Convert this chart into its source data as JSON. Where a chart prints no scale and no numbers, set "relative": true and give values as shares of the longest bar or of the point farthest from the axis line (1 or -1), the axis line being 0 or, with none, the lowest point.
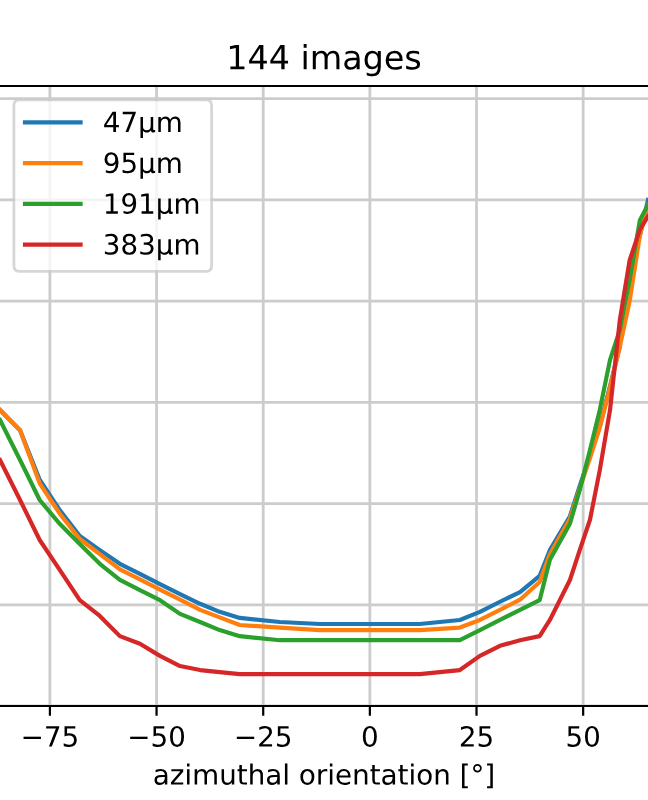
{
  "chart_data": {
    "type": "line",
    "title": "144 images",
    "xlabel": "azimuthal orientation [°]",
    "relative": true,
    "x": [
      -86.7,
      -82.0,
      -77.4,
      -72.7,
      -68.0,
      -63.3,
      -58.6,
      -53.9,
      -49.2,
      -44.5,
      -39.8,
      -35.2,
      -30.5,
      -21.1,
      -11.7,
      0,
      11.7,
      21.1,
      25.8,
      30.5,
      35.2,
      39.8,
      42.2,
      46.9,
      49.2,
      51.6,
      53.9,
      56.3,
      58.6,
      60.9,
      63.3,
      65.2
    ],
    "xlim": [
      -86.7,
      65.2
    ],
    "xticks": [
      -75,
      -50,
      -25,
      0,
      25,
      50
    ],
    "series": [
      {
        "name": "47μm",
        "color": "#1f77b4",
        "values": [
          0.585,
          0.545,
          0.447,
          0.387,
          0.336,
          0.308,
          0.281,
          0.261,
          0.241,
          0.221,
          0.202,
          0.186,
          0.174,
          0.166,
          0.162,
          0.162,
          0.162,
          0.17,
          0.186,
          0.206,
          0.225,
          0.257,
          0.308,
          0.375,
          0.435,
          0.494,
          0.553,
          0.632,
          0.711,
          null,
          0.929,
          1.0
        ]
      },
      {
        "name": "95μm",
        "color": "#ff7f0e",
        "values": [
          0.585,
          0.545,
          0.44,
          0.38,
          0.33,
          0.3,
          0.27,
          0.25,
          0.23,
          0.21,
          0.19,
          0.175,
          0.16,
          0.155,
          0.15,
          0.15,
          0.15,
          0.155,
          0.17,
          0.19,
          0.21,
          0.245,
          0.3,
          0.37,
          0.43,
          0.49,
          0.55,
          0.63,
          0.71,
          0.8,
          0.93,
          0.99
        ]
      },
      {
        "name": "191μm",
        "color": "#2ca02c",
        "values": [
          0.565,
          0.486,
          0.407,
          0.36,
          0.32,
          0.281,
          0.249,
          0.229,
          0.209,
          0.182,
          0.166,
          0.15,
          0.138,
          0.13,
          0.13,
          0.13,
          0.13,
          0.13,
          0.15,
          0.17,
          0.19,
          0.209,
          0.289,
          0.36,
          0.427,
          0.506,
          0.585,
          0.684,
          0.743,
          0.842,
          0.96,
          0.99
        ]
      },
      {
        "name": "383μm",
        "color": "#d62728",
        "values": [
          0.486,
          0.407,
          0.328,
          0.269,
          0.209,
          0.178,
          0.138,
          0.123,
          0.099,
          0.079,
          0.071,
          0.067,
          0.063,
          0.063,
          0.063,
          0.063,
          0.063,
          0.071,
          0.099,
          0.119,
          0.13,
          0.138,
          0.17,
          0.249,
          0.308,
          0.368,
          0.466,
          0.585,
          0.763,
          0.881,
          0.941,
          0.968
        ]
      }
    ],
    "grid": true,
    "legend": "top left"
  }
}
